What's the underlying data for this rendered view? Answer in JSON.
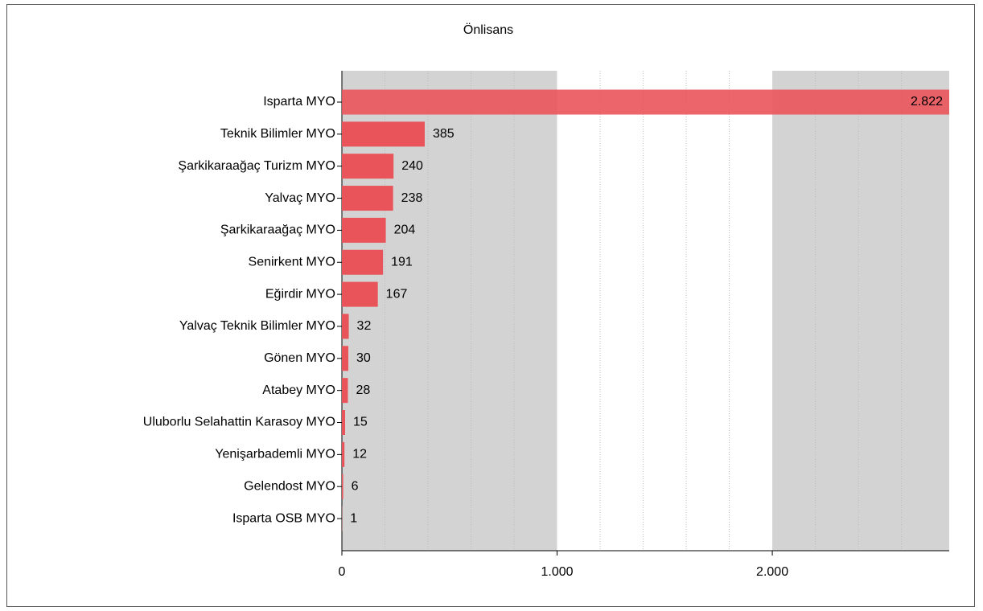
{
  "chart_data": {
    "type": "bar",
    "orientation": "horizontal",
    "title": "Önlisans",
    "categories": [
      "Isparta MYO",
      "Teknik Bilimler MYO",
      "Şarkikaraağaç Turizm MYO",
      "Yalvaç MYO",
      "Şarkikaraağaç MYO",
      "Senirkent MYO",
      "Eğirdir MYO",
      "Yalvaç Teknik Bilimler MYO",
      "Gönen MYO",
      "Atabey MYO",
      "Uluborlu Selahattin Karasoy MYO",
      "Yenişarbademli MYO",
      "Gelendost MYO",
      "Isparta OSB MYO"
    ],
    "values": [
      2822,
      385,
      240,
      238,
      204,
      191,
      167,
      32,
      30,
      28,
      15,
      12,
      6,
      1
    ],
    "value_labels": [
      "2.822",
      "385",
      "240",
      "238",
      "204",
      "191",
      "167",
      "32",
      "30",
      "28",
      "15",
      "12",
      "6",
      "1"
    ],
    "color": "#e9545a",
    "xlim": [
      0,
      2822
    ],
    "xticks": [
      0,
      {
        "value": 1000,
        "label": "1.000"
      },
      {
        "value": 2000,
        "label": "2.000"
      }
    ],
    "x_minor_ticks": [
      200,
      400,
      600,
      800,
      1200,
      1400,
      1600,
      1800,
      2200,
      2400,
      2600
    ],
    "grid": true
  }
}
